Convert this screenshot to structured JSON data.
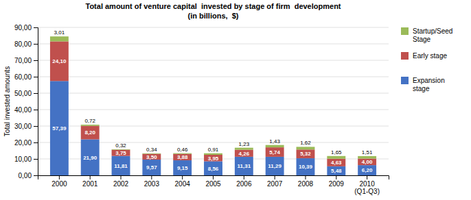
{
  "chart_data": {
    "type": "bar",
    "stacked": true,
    "title": "Total amount of venture capital  invested by stage of firm  development",
    "subtitle": "(in billions,  $)",
    "ylabel": "Total invested amounts",
    "categories": [
      "2000",
      "2001",
      "2002",
      "2003",
      "2004",
      "2005",
      "2006",
      "2007",
      "2008",
      "2009",
      "2010\n(Q1-Q3)"
    ],
    "series": [
      {
        "name": "Expansion\nstage",
        "color": "#4472C4",
        "values": [
          57.39,
          21.9,
          11.81,
          9.57,
          9.15,
          8.56,
          11.31,
          11.29,
          10.39,
          5.48,
          6.2
        ],
        "value_labels": [
          "57,39",
          "21,90",
          "11,81",
          "9,57",
          "9,15",
          "8,56",
          "11,31",
          "11,29",
          "10,39",
          "5,48",
          "6,20"
        ]
      },
      {
        "name": "Early stage",
        "color": "#C0504D",
        "values": [
          24.1,
          8.2,
          3.75,
          3.5,
          3.88,
          3.95,
          4.26,
          5.74,
          5.32,
          4.63,
          4.0
        ],
        "value_labels": [
          "24,10",
          "8,20",
          "3,75",
          "3,50",
          "3,88",
          "3,95",
          "4,26",
          "5,74",
          "5,32",
          "4,63",
          "4,00"
        ]
      },
      {
        "name": "Startup/Seed\nStage",
        "color": "#9BBB59",
        "values": [
          3.01,
          0.72,
          0.32,
          0.34,
          0.46,
          0.91,
          1.23,
          1.43,
          1.62,
          1.65,
          1.51
        ],
        "value_labels": [
          "3,01",
          "0,72",
          "0,32",
          "0,34",
          "0,46",
          "0,91",
          "1,23",
          "1,43",
          "1,62",
          "1,65",
          "1,51"
        ]
      }
    ],
    "ylim": [
      0,
      90
    ],
    "yticks": [
      {
        "value": 0,
        "label": "0,00"
      },
      {
        "value": 10,
        "label": "10,00"
      },
      {
        "value": 20,
        "label": "20,00"
      },
      {
        "value": 30,
        "label": "30,00"
      },
      {
        "value": 40,
        "label": "40,00"
      },
      {
        "value": 50,
        "label": "50,00"
      },
      {
        "value": 60,
        "label": "60,00"
      },
      {
        "value": 70,
        "label": "70,00"
      },
      {
        "value": 80,
        "label": "80,00"
      },
      {
        "value": 90,
        "label": "90,00"
      }
    ],
    "grid": true,
    "data_labels": true,
    "legend": "right"
  }
}
